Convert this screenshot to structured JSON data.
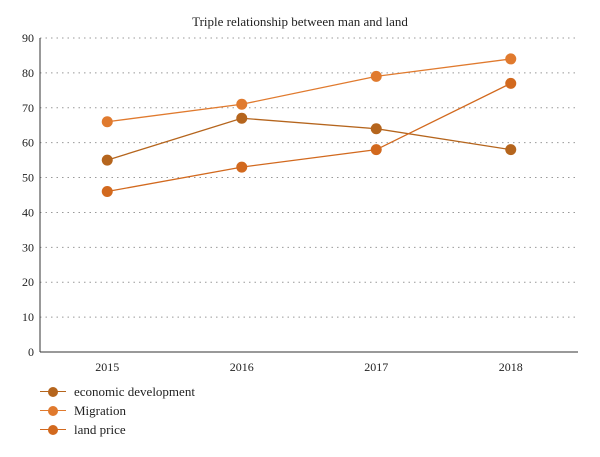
{
  "chart_data": {
    "type": "line",
    "title": "Triple relationship between man and land",
    "xlabel": "",
    "ylabel": "",
    "categories": [
      "2015",
      "2016",
      "2017",
      "2018"
    ],
    "y_ticks": [
      "0",
      "10",
      "20",
      "30",
      "40",
      "50",
      "60",
      "70",
      "80",
      "90"
    ],
    "ylim": [
      0,
      90
    ],
    "grid": "horizontal dotted",
    "legend_position": "bottom-left",
    "series": [
      {
        "name": "economic development",
        "values": [
          55,
          67,
          64,
          58
        ],
        "color": "#b5651d"
      },
      {
        "name": "Migration",
        "values": [
          66,
          71,
          79,
          84
        ],
        "color": "#e07a2e"
      },
      {
        "name": "land price",
        "values": [
          46,
          53,
          58,
          77
        ],
        "color": "#d2691e"
      }
    ]
  }
}
